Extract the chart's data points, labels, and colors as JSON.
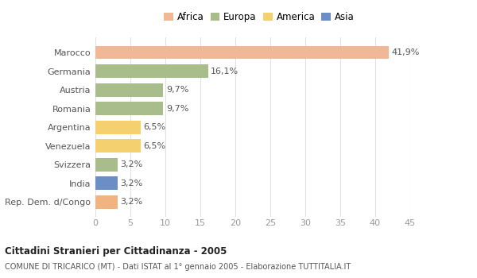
{
  "categories": [
    "Rep. Dem. d/Congo",
    "India",
    "Svizzera",
    "Venezuela",
    "Argentina",
    "Romania",
    "Austria",
    "Germania",
    "Marocco"
  ],
  "values": [
    3.2,
    3.2,
    3.2,
    6.5,
    6.5,
    9.7,
    9.7,
    16.1,
    41.9
  ],
  "labels": [
    "3,2%",
    "3,2%",
    "3,2%",
    "6,5%",
    "6,5%",
    "9,7%",
    "9,7%",
    "16,1%",
    "41,9%"
  ],
  "colors": [
    "#f0b482",
    "#6b8ec4",
    "#a8bc8c",
    "#f5d06e",
    "#f5d06e",
    "#a8bc8c",
    "#a8bc8c",
    "#a8bc8c",
    "#f0b896"
  ],
  "legend_labels": [
    "Africa",
    "Europa",
    "America",
    "Asia"
  ],
  "legend_colors": [
    "#f0b896",
    "#a8bc8c",
    "#f5d06e",
    "#6b8ec4"
  ],
  "xlim": [
    0,
    45
  ],
  "xticks": [
    0,
    5,
    10,
    15,
    20,
    25,
    30,
    35,
    40,
    45
  ],
  "title": "Cittadini Stranieri per Cittadinanza - 2005",
  "subtitle": "COMUNE DI TRICARICO (MT) - Dati ISTAT al 1° gennaio 2005 - Elaborazione TUTTITALIA.IT",
  "bg_color": "#ffffff",
  "bar_height": 0.72,
  "label_fontsize": 8,
  "tick_fontsize": 8,
  "ytick_fontsize": 8
}
